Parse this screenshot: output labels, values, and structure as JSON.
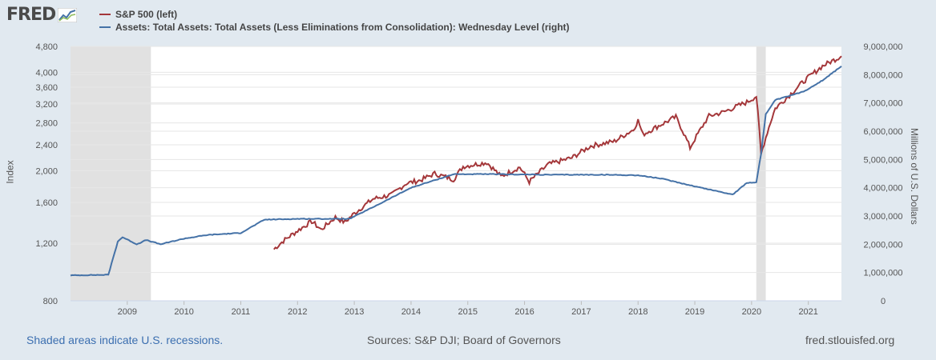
{
  "logo": {
    "text": "FRED"
  },
  "footer": {
    "recession_note": "Shaded areas indicate U.S. recessions.",
    "sources": "Sources: S&P DJI; Board of Governors",
    "site": "fred.stlouisfed.org"
  },
  "colors": {
    "sp500": "#a4373a",
    "assets": "#4572a7",
    "recession": "#e1e1e1",
    "background": "#e1e9f0"
  },
  "chart_data": {
    "type": "line",
    "x_range": [
      "2008-01",
      "2021-08"
    ],
    "x_ticks": [
      "2009",
      "2010",
      "2011",
      "2012",
      "2013",
      "2014",
      "2015",
      "2016",
      "2017",
      "2018",
      "2019",
      "2020",
      "2021"
    ],
    "left_axis": {
      "label": "Index",
      "scale": "log",
      "range": [
        800,
        4800
      ],
      "ticks": [
        "800",
        "1,200",
        "1,600",
        "2,000",
        "2,400",
        "2,800",
        "3,200",
        "3,600",
        "4,000",
        "4,800"
      ]
    },
    "right_axis": {
      "label": "Millions of U.S. Dollars",
      "scale": "linear",
      "range": [
        0,
        9000000
      ],
      "ticks": [
        "0",
        "1,000,000",
        "2,000,000",
        "3,000,000",
        "4,000,000",
        "5,000,000",
        "6,000,000",
        "7,000,000",
        "8,000,000",
        "9,000,000"
      ]
    },
    "recessions": [
      [
        "2008-01",
        "2009-06"
      ],
      [
        "2020-02",
        "2020-04"
      ]
    ],
    "series": [
      {
        "name": "S&P 500 (left)",
        "axis": "left",
        "points": [
          [
            "2011-08",
            1150
          ],
          [
            "2011-10",
            1220
          ],
          [
            "2012-01",
            1310
          ],
          [
            "2012-04",
            1400
          ],
          [
            "2012-06",
            1320
          ],
          [
            "2012-09",
            1440
          ],
          [
            "2012-11",
            1390
          ],
          [
            "2013-01",
            1480
          ],
          [
            "2013-05",
            1640
          ],
          [
            "2013-09",
            1690
          ],
          [
            "2013-12",
            1830
          ],
          [
            "2014-03",
            1870
          ],
          [
            "2014-06",
            1960
          ],
          [
            "2014-10",
            1880
          ],
          [
            "2014-12",
            2060
          ],
          [
            "2015-05",
            2120
          ],
          [
            "2015-08",
            1920
          ],
          [
            "2015-12",
            2050
          ],
          [
            "2016-02",
            1850
          ],
          [
            "2016-06",
            2090
          ],
          [
            "2016-11",
            2190
          ],
          [
            "2017-03",
            2380
          ],
          [
            "2017-08",
            2460
          ],
          [
            "2017-12",
            2670
          ],
          [
            "2018-01",
            2850
          ],
          [
            "2018-02",
            2580
          ],
          [
            "2018-09",
            2920
          ],
          [
            "2018-12",
            2350
          ],
          [
            "2019-04",
            2940
          ],
          [
            "2019-07",
            3020
          ],
          [
            "2019-12",
            3240
          ],
          [
            "2020-02",
            3380
          ],
          [
            "2020-03",
            2240
          ],
          [
            "2020-06",
            3100
          ],
          [
            "2020-09",
            3400
          ],
          [
            "2020-12",
            3750
          ],
          [
            "2021-04",
            4180
          ],
          [
            "2021-08",
            4480
          ]
        ]
      },
      {
        "name": "Assets: Total Assets: Total Assets (Less Eliminations from Consolidation): Wednesday Level (right)",
        "axis": "right",
        "points": [
          [
            "2008-01",
            900000
          ],
          [
            "2008-09",
            920000
          ],
          [
            "2008-11",
            2100000
          ],
          [
            "2008-12",
            2250000
          ],
          [
            "2009-03",
            2000000
          ],
          [
            "2009-05",
            2150000
          ],
          [
            "2009-08",
            2000000
          ],
          [
            "2010-01",
            2200000
          ],
          [
            "2010-06",
            2330000
          ],
          [
            "2011-01",
            2400000
          ],
          [
            "2011-06",
            2870000
          ],
          [
            "2012-01",
            2900000
          ],
          [
            "2012-12",
            2900000
          ],
          [
            "2013-06",
            3400000
          ],
          [
            "2014-01",
            4000000
          ],
          [
            "2014-10",
            4480000
          ],
          [
            "2015-06",
            4480000
          ],
          [
            "2016-06",
            4460000
          ],
          [
            "2017-06",
            4460000
          ],
          [
            "2018-01",
            4440000
          ],
          [
            "2018-06",
            4320000
          ],
          [
            "2019-01",
            4050000
          ],
          [
            "2019-09",
            3760000
          ],
          [
            "2019-12",
            4170000
          ],
          [
            "2020-02",
            4190000
          ],
          [
            "2020-03",
            5200000
          ],
          [
            "2020-04",
            6600000
          ],
          [
            "2020-06",
            7100000
          ],
          [
            "2020-12",
            7400000
          ],
          [
            "2021-04",
            7800000
          ],
          [
            "2021-08",
            8300000
          ]
        ]
      }
    ]
  }
}
